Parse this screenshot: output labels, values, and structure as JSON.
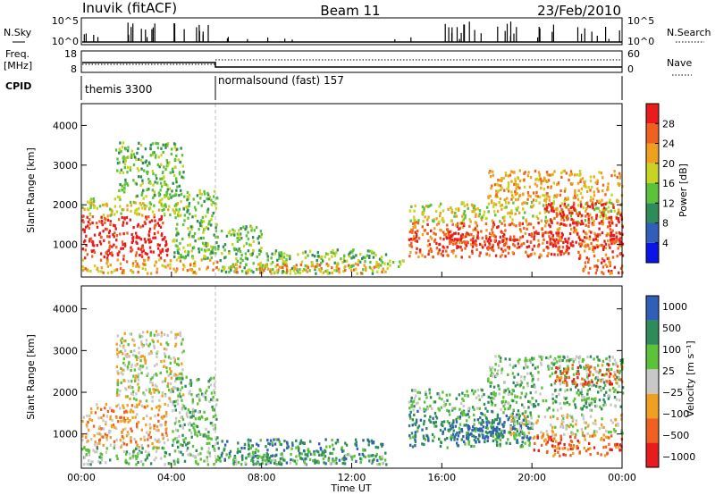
{
  "header": {
    "station": "Inuvik (fitACF)",
    "beam": "Beam 11",
    "date": "23/Feb/2010"
  },
  "summary_panels": {
    "nsky_label": "N.Sky",
    "nsky_ticks": [
      "10^5",
      "10^0"
    ],
    "nsearch_label": "N.Search",
    "nsearch_ticks": [
      "10^5",
      "10^0"
    ],
    "freq_label": "Freq.",
    "freq_unit": "[MHz]",
    "freq_ticks": [
      "18",
      "8"
    ],
    "nave_label": "Nave",
    "nave_ticks": [
      "60",
      "0"
    ],
    "cpid_label": "CPID",
    "modes": [
      {
        "name": "themis 3300",
        "start_hour": 0,
        "end_hour": 6
      },
      {
        "name": "normalsound (fast) 157",
        "start_hour": 6,
        "end_hour": 24
      }
    ]
  },
  "colors": {
    "power": [
      "#0a14e6",
      "#2f5fb8",
      "#2e8b5a",
      "#5cc23a",
      "#c8d423",
      "#f0a020",
      "#f06020",
      "#e81c1c"
    ],
    "velocity": [
      "#e81c1c",
      "#f06020",
      "#f0a020",
      "#c8c8c8",
      "#5cc23a",
      "#2e8b5a",
      "#2f5fb8"
    ]
  },
  "chart_data": [
    {
      "type": "heatmap",
      "name": "power",
      "ylabel": "Slant Range [km]",
      "xlabel": "",
      "x_range_hours": [
        0,
        24
      ],
      "y_range_km": [
        180,
        4550
      ],
      "x_ticks": [
        "00:00",
        "04:00",
        "08:00",
        "12:00",
        "16:00",
        "20:00",
        "00:00"
      ],
      "y_ticks": [
        1000,
        2000,
        3000,
        4000
      ],
      "colorbar": {
        "label": "Power [dB]",
        "ticks": [
          "28",
          "24",
          "20",
          "16",
          "12",
          "8",
          "4"
        ],
        "range": [
          0,
          32
        ]
      },
      "regions": [
        {
          "t0": 0.0,
          "t1": 3.8,
          "r0": 650,
          "r1": 1750,
          "level": 7
        },
        {
          "t0": 0.0,
          "t1": 4.5,
          "r0": 1750,
          "r1": 2200,
          "level": 4
        },
        {
          "t0": 0.0,
          "t1": 6.0,
          "r0": 300,
          "r1": 650,
          "level": 5
        },
        {
          "t0": 1.5,
          "t1": 4.5,
          "r0": 2200,
          "r1": 3600,
          "level": 3
        },
        {
          "t0": 4.0,
          "t1": 6.0,
          "r0": 650,
          "r1": 2400,
          "level": 3
        },
        {
          "t0": 6.0,
          "t1": 8.0,
          "r0": 300,
          "r1": 1500,
          "level": 3
        },
        {
          "t0": 8.0,
          "t1": 13.5,
          "r0": 300,
          "r1": 900,
          "level": 3
        },
        {
          "t0": 6.5,
          "t1": 13.5,
          "r0": 300,
          "r1": 550,
          "level": 5
        },
        {
          "t0": 13.5,
          "t1": 14.3,
          "r0": 400,
          "r1": 650,
          "level": 4
        },
        {
          "t0": 14.5,
          "t1": 24.0,
          "r0": 700,
          "r1": 1600,
          "level": 6
        },
        {
          "t0": 16.0,
          "t1": 24.0,
          "r0": 950,
          "r1": 1350,
          "level": 7
        },
        {
          "t0": 14.5,
          "t1": 24.0,
          "r0": 1600,
          "r1": 2100,
          "level": 4
        },
        {
          "t0": 20.5,
          "t1": 24.0,
          "r0": 1500,
          "r1": 2100,
          "level": 7
        },
        {
          "t0": 18.0,
          "t1": 24.0,
          "r0": 2100,
          "r1": 2900,
          "level": 5
        },
        {
          "t0": 22.0,
          "t1": 24.0,
          "r0": 300,
          "r1": 700,
          "level": 6
        }
      ]
    },
    {
      "type": "heatmap",
      "name": "velocity",
      "ylabel": "Slant Range [km]",
      "xlabel": "Time UT",
      "x_range_hours": [
        0,
        24
      ],
      "y_range_km": [
        180,
        4550
      ],
      "x_ticks": [
        "00:00",
        "04:00",
        "08:00",
        "12:00",
        "16:00",
        "20:00",
        "00:00"
      ],
      "y_ticks": [
        1000,
        2000,
        3000,
        4000
      ],
      "colorbar": {
        "label": "Velocity [m s⁻¹]",
        "ticks": [
          "1000",
          "500",
          "100",
          "25",
          "−25",
          "−100",
          "−500",
          "−1000"
        ],
        "range": [
          -1000,
          1000
        ]
      },
      "regions": [
        {
          "t0": 0.0,
          "t1": 3.8,
          "r0": 700,
          "r1": 1750,
          "level": 2
        },
        {
          "t0": 0.0,
          "t1": 6.0,
          "r0": 300,
          "r1": 700,
          "level": 4
        },
        {
          "t0": 1.5,
          "t1": 4.5,
          "r0": 1800,
          "r1": 3500,
          "level": 3
        },
        {
          "t0": 4.0,
          "t1": 6.0,
          "r0": 700,
          "r1": 2400,
          "level": 4
        },
        {
          "t0": 6.0,
          "t1": 13.5,
          "r0": 300,
          "r1": 900,
          "level": 5
        },
        {
          "t0": 6.5,
          "t1": 13.5,
          "r0": 300,
          "r1": 550,
          "level": 4
        },
        {
          "t0": 14.5,
          "t1": 20.0,
          "r0": 700,
          "r1": 1600,
          "level": 5
        },
        {
          "t0": 16.0,
          "t1": 20.0,
          "r0": 900,
          "r1": 1400,
          "level": 6
        },
        {
          "t0": 19.0,
          "t1": 24.0,
          "r0": 1000,
          "r1": 1500,
          "level": 3
        },
        {
          "t0": 14.5,
          "t1": 24.0,
          "r0": 1600,
          "r1": 2100,
          "level": 4
        },
        {
          "t0": 18.0,
          "t1": 24.0,
          "r0": 2100,
          "r1": 2900,
          "level": 4
        },
        {
          "t0": 21.0,
          "t1": 24.0,
          "r0": 2200,
          "r1": 2700,
          "level": 1
        },
        {
          "t0": 20.0,
          "t1": 24.0,
          "r0": 500,
          "r1": 1000,
          "level": 1
        }
      ]
    }
  ]
}
